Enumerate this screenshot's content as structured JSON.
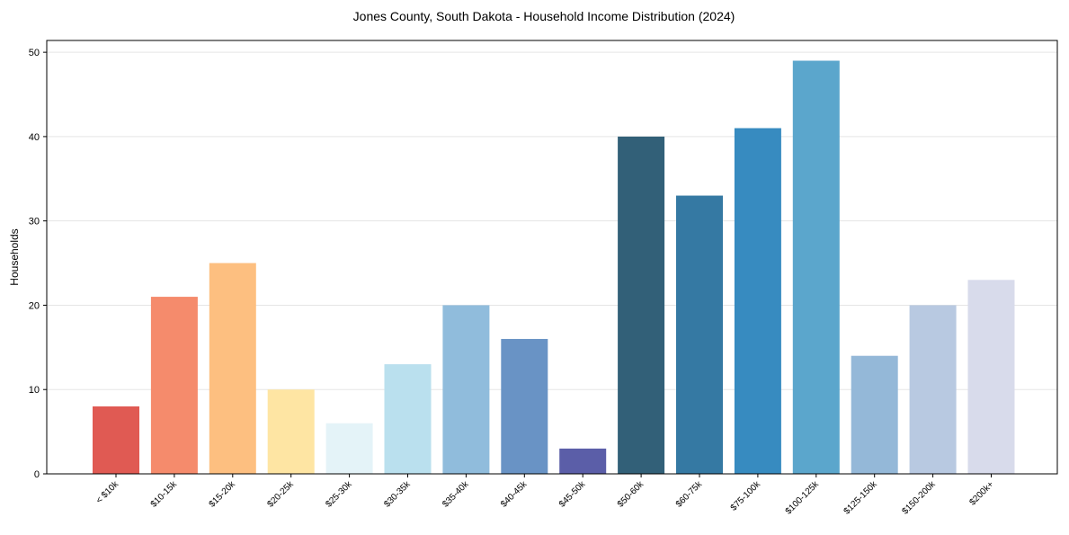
{
  "chart_data": {
    "type": "bar",
    "title": "Jones County, South Dakota - Household Income Distribution (2024)",
    "xlabel": "",
    "ylabel": "Households",
    "ylim": [
      0,
      51.4
    ],
    "yticks": [
      0,
      10,
      20,
      30,
      40,
      50
    ],
    "grid": true,
    "categories": [
      "< $10k",
      "$10-15k",
      "$15-20k",
      "$20-25k",
      "$25-30k",
      "$30-35k",
      "$35-40k",
      "$40-45k",
      "$45-50k",
      "$50-60k",
      "$60-75k",
      "$75-100k",
      "$100-125k",
      "$125-150k",
      "$150-200k",
      "$200k+"
    ],
    "values": [
      8,
      21,
      25,
      10,
      6,
      13,
      20,
      16,
      3,
      40,
      33,
      41,
      49,
      14,
      20,
      23
    ],
    "colors": [
      "#e05a53",
      "#f58b6c",
      "#fdbf80",
      "#fee5a3",
      "#e4f3f8",
      "#bae0ee",
      "#90bcdc",
      "#6993c5",
      "#5b5ea8",
      "#326078",
      "#3579a3",
      "#378bc0",
      "#5ba6cc",
      "#94b8d8",
      "#b8c9e1",
      "#d8dbeb"
    ]
  }
}
